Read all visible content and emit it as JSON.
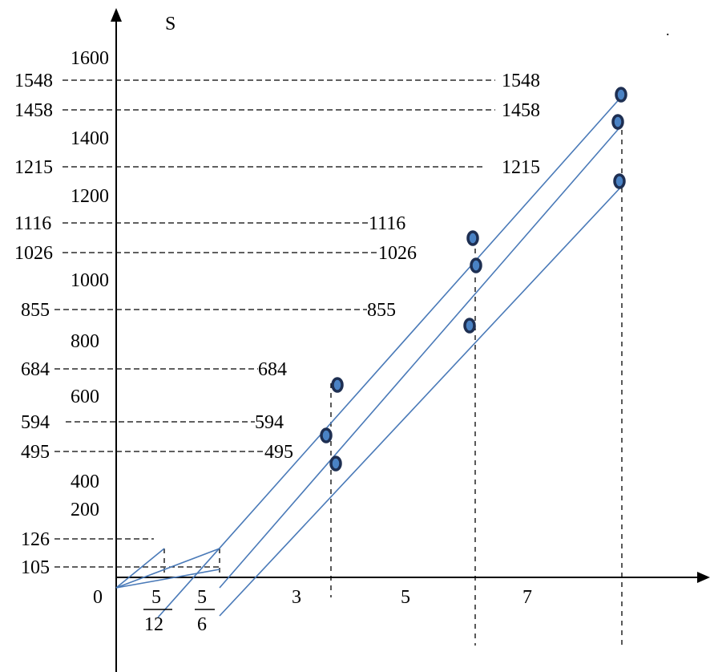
{
  "y_axis_label": "S",
  "origin_label": "0",
  "y_ticks": [
    "1600",
    "1400",
    "1200",
    "1000",
    "800",
    "600",
    "400",
    "200"
  ],
  "dashed_levels": [
    {
      "left": "1548",
      "right": "1548"
    },
    {
      "left": "1458",
      "right": "1458"
    },
    {
      "left": "1215",
      "right": "1215"
    },
    {
      "left": "1116",
      "right": "1116"
    },
    {
      "left": "1026",
      "right": "1026"
    },
    {
      "left": "855",
      "right": "855"
    },
    {
      "left": "684",
      "right": "684"
    },
    {
      "left": "594 ",
      "right": "594"
    },
    {
      "left": "495",
      "right": "495"
    },
    {
      "left": "126",
      "right": ""
    },
    {
      "left": "105",
      "right": ""
    }
  ],
  "x_fractions": [
    {
      "numerator": "5",
      "denominator": "12"
    },
    {
      "numerator": "5",
      "denominator": "6"
    }
  ],
  "x_labels": [
    "3",
    "5",
    "7"
  ],
  "stray_mark": ".",
  "colors": {
    "line": "#4a7ab8",
    "dot_fill": "#4a82c4",
    "dot_stroke": "#1e2f52",
    "axis": "#000000"
  }
}
